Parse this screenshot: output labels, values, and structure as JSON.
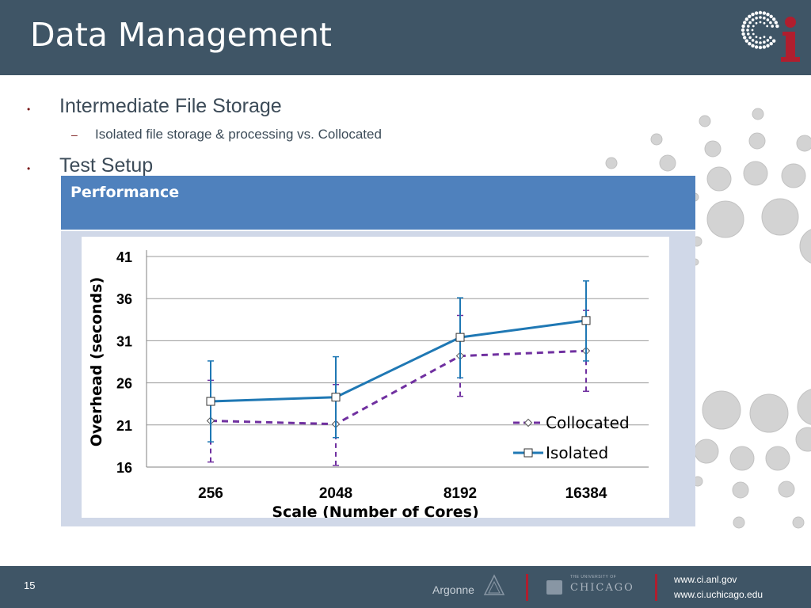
{
  "slide": {
    "title": "Data Management",
    "bullets": [
      {
        "text": "Intermediate File Storage",
        "sub": [
          "Isolated file storage & processing vs. Collocated"
        ]
      },
      {
        "text": "Test Setup"
      }
    ],
    "bullet_mark": "•",
    "sub_mark": "–",
    "panel_title": "Performance"
  },
  "footer": {
    "page_number": "15",
    "argonne": "Argonne",
    "uchicago_small": "THE UNIVERSITY OF",
    "uchicago": "CHICAGO",
    "url1": "www.ci.anl.gov",
    "url2": "www.ci.uchicago.edu"
  },
  "colors": {
    "header_bg": "#3f5566",
    "panel_blue": "#4f81bd",
    "isolated_line": "#1f78b4",
    "collocated_line": "#7030a0",
    "logo_red": "#b01e2e"
  },
  "chart_data": {
    "type": "line",
    "categories": [
      "256",
      "2048",
      "8192",
      "16384"
    ],
    "xlabel": "Scale  (Number of Cores)",
    "ylabel": "Overhead  (seconds)",
    "ylim": [
      16,
      41
    ],
    "yticks": [
      16,
      21,
      26,
      31,
      36,
      41
    ],
    "grid": true,
    "legend_position": "bottom-right",
    "series": [
      {
        "name": "Collocated",
        "values": [
          21.5,
          21.1,
          29.2,
          29.8
        ],
        "err_low": [
          16.6,
          16.2,
          24.4,
          25.0
        ],
        "err_high": [
          26.3,
          25.8,
          34.0,
          34.6
        ],
        "color": "#7030a0",
        "style": "dashed",
        "marker": "diamond"
      },
      {
        "name": "Isolated",
        "values": [
          23.8,
          24.3,
          31.4,
          33.4
        ],
        "err_low": [
          19.0,
          19.5,
          26.6,
          28.6
        ],
        "err_high": [
          28.6,
          29.1,
          36.1,
          38.1
        ],
        "color": "#1f78b4",
        "style": "solid",
        "marker": "square"
      }
    ]
  }
}
